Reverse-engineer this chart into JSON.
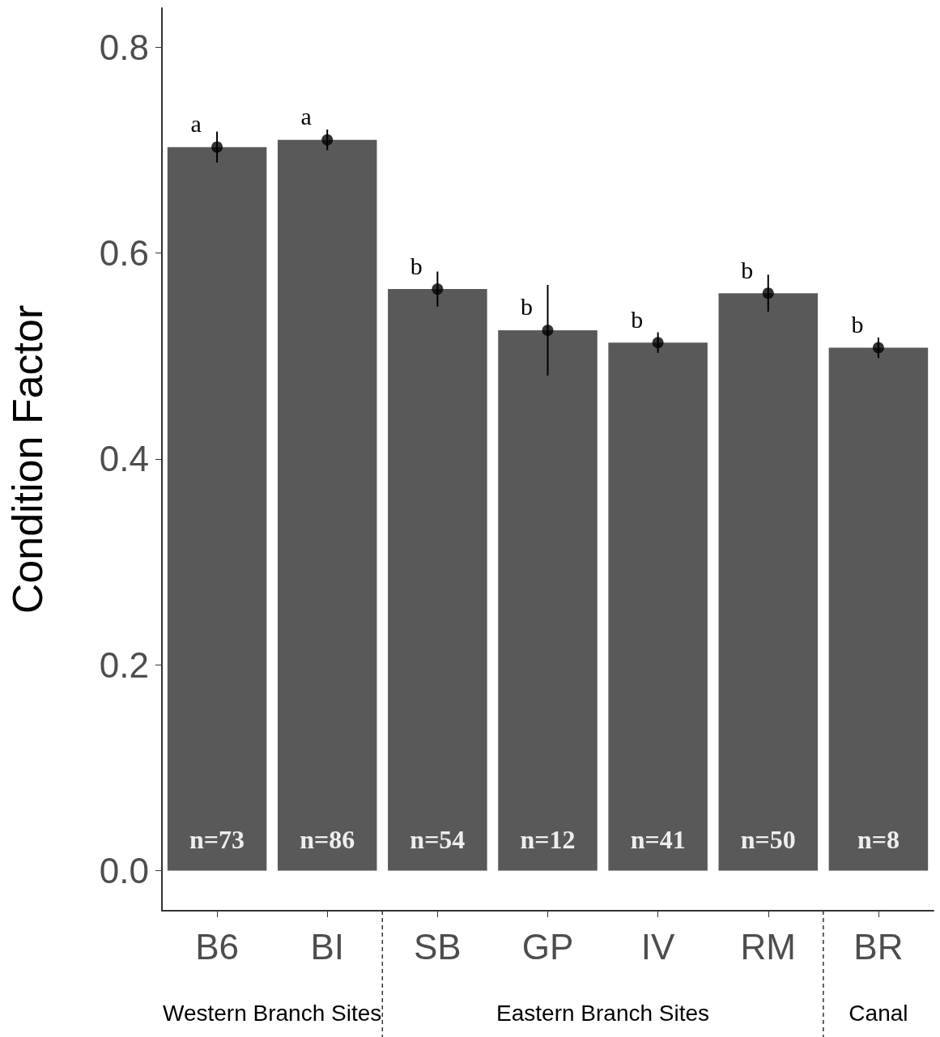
{
  "chart_data": {
    "type": "bar",
    "ylabel": "Condition Factor",
    "categories": [
      "B6",
      "BI",
      "SB",
      "GP",
      "IV",
      "RM",
      "BR"
    ],
    "series": [
      {
        "color": "#595959",
        "values": [
          0.703,
          0.71,
          0.565,
          0.525,
          0.513,
          0.561,
          0.508
        ],
        "errors": [
          0.015,
          0.01,
          0.017,
          0.044,
          0.01,
          0.018,
          0.01
        ]
      },
      {
        "type": "scatter",
        "color": "#000000",
        "x": [
          "B6",
          "BI",
          "SB",
          "GP",
          "IV",
          "RM",
          "BR"
        ],
        "values": [
          0.703,
          0.71,
          0.565,
          0.525,
          0.513,
          0.561,
          0.508
        ]
      }
    ],
    "ylim": [
      -0.039,
      0.838
    ],
    "yticks": [
      {
        "value": 0,
        "label": "0.0"
      },
      0.2,
      0.4,
      0.6,
      0.8
    ],
    "grid": false,
    "marker": "circle",
    "annotations": [
      {
        "text": "a",
        "x": "B6",
        "y": 0.703
      },
      {
        "text": "a",
        "x": "BI",
        "y": 0.71
      },
      {
        "text": "b",
        "x": "SB",
        "y": 0.565
      },
      {
        "text": "b",
        "x": "GP",
        "y": 0.525
      },
      {
        "text": "b",
        "x": "IV",
        "y": 0.513
      },
      {
        "text": "b",
        "x": "RM",
        "y": 0.561
      },
      {
        "text": "b",
        "x": "BR",
        "y": 0.508
      },
      {
        "text": "n=73",
        "x": "B6",
        "y": 0
      },
      {
        "text": "n=86",
        "x": "BI",
        "y": 0
      },
      {
        "text": "n=54",
        "x": "SB",
        "y": 0
      },
      {
        "text": "n=12",
        "x": "GP",
        "y": 0
      },
      {
        "text": "n=41",
        "x": "IV",
        "y": 0
      },
      {
        "text": "n=50",
        "x": "RM",
        "y": 0
      },
      {
        "text": "n=8",
        "x": "BR",
        "y": 0
      },
      "Western Branch Sites",
      "Eastern Branch Sites",
      "Canal"
    ]
  }
}
